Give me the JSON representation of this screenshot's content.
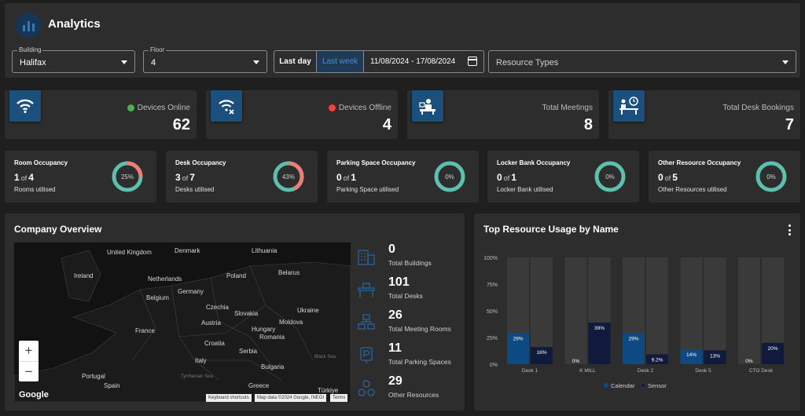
{
  "app": {
    "title": "Analytics"
  },
  "filters": {
    "building": {
      "label": "Building",
      "value": "Halifax"
    },
    "floor": {
      "label": "Floor",
      "value": "4"
    },
    "range": {
      "last_day": "Last day",
      "last_week": "Last week",
      "dates": "11/08/2024 - 17/08/2024"
    },
    "resource_types": {
      "placeholder": "Resource Types"
    }
  },
  "stats": [
    {
      "label": "Devices Online",
      "value": "62",
      "icon": "wifi-icon",
      "status_color": "#4caf50"
    },
    {
      "label": "Devices Offline",
      "value": "4",
      "icon": "wifi-off-icon",
      "status_color": "#f44336"
    },
    {
      "label": "Total Meetings",
      "value": "8",
      "icon": "meeting-icon"
    },
    {
      "label": "Total Desk Bookings",
      "value": "7",
      "icon": "desk-booking-icon"
    }
  ],
  "occupancy": [
    {
      "title": "Room Occupancy",
      "used": "1",
      "of": "of",
      "total": "4",
      "sub": "Rooms utilised",
      "percent_label": "25%",
      "percent": 25
    },
    {
      "title": "Desk Occupancy",
      "used": "3",
      "of": "of",
      "total": "7",
      "sub": "Desks utilised",
      "percent_label": "43%",
      "percent": 43
    },
    {
      "title": "Parking Space Occupancy",
      "used": "0",
      "of": "of",
      "total": "1",
      "sub": "Parking Space utilised",
      "percent_label": "0%",
      "percent": 0
    },
    {
      "title": "Locker Bank Occupancy",
      "used": "0",
      "of": "of",
      "total": "1",
      "sub": "Locker Bank utilised",
      "percent_label": "0%",
      "percent": 0
    },
    {
      "title": "Other Resource Occupancy",
      "used": "0",
      "of": "of",
      "total": "5",
      "sub": "Other Resources utilised",
      "percent_label": "0%",
      "percent": 0
    }
  ],
  "company": {
    "title": "Company Overview",
    "map": {
      "countries": [
        "United Kingdom",
        "Ireland",
        "Denmark",
        "Lithuania",
        "Netherlands",
        "Belarus",
        "Poland",
        "Belgium",
        "Germany",
        "Czechia",
        "Ukraine",
        "Slovakia",
        "Austria",
        "Moldova",
        "France",
        "Hungary",
        "Romania",
        "Croatia",
        "Serbia",
        "Italy",
        "Bulgaria",
        "Portugal",
        "Spain",
        "Greece",
        "Türkiye"
      ],
      "seas": [
        "Black Sea",
        "Tyrrhenian Sea"
      ],
      "zoom_in": "+",
      "zoom_out": "−",
      "google": "Google",
      "keyboard": "Keyboard shortcuts",
      "map_data": "Map data ©2024 Google, INEGI",
      "terms": "Terms"
    },
    "kpis": [
      {
        "value": "0",
        "label": "Total Buildings",
        "icon": "building-icon"
      },
      {
        "value": "101",
        "label": "Total Desks",
        "icon": "desk-icon"
      },
      {
        "value": "26",
        "label": "Total Meeting Rooms",
        "icon": "meeting-room-icon"
      },
      {
        "value": "11",
        "label": "Total Parking Spaces",
        "icon": "parking-icon"
      },
      {
        "value": "29",
        "label": "Other Resources",
        "icon": "resources-icon"
      }
    ]
  },
  "usage": {
    "title": "Top Resource Usage by Name",
    "colors": {
      "calendar": "#0d4a82",
      "sensor": "#0f1a3d",
      "track": "#3a3a3a"
    }
  },
  "chart_data": {
    "type": "bar",
    "title": "Top Resource Usage by Name",
    "categories": [
      "Desk 1",
      "K MILL",
      "Desk 2",
      "Desk 5",
      "CTO Desk"
    ],
    "series": [
      {
        "name": "Calendar",
        "values": [
          29,
          0,
          29,
          14,
          0
        ],
        "labels": [
          "29%",
          "0%",
          "29%",
          "14%",
          "0%"
        ]
      },
      {
        "name": "Sensor",
        "values": [
          16,
          39,
          9.2,
          13,
          20
        ],
        "labels": [
          "16%",
          "39%",
          "9.2%",
          "13%",
          "20%"
        ]
      }
    ],
    "y_ticks": [
      "0%",
      "25%",
      "50%",
      "75%",
      "100%"
    ],
    "ylim": [
      0,
      100
    ],
    "legend": "bottom"
  }
}
